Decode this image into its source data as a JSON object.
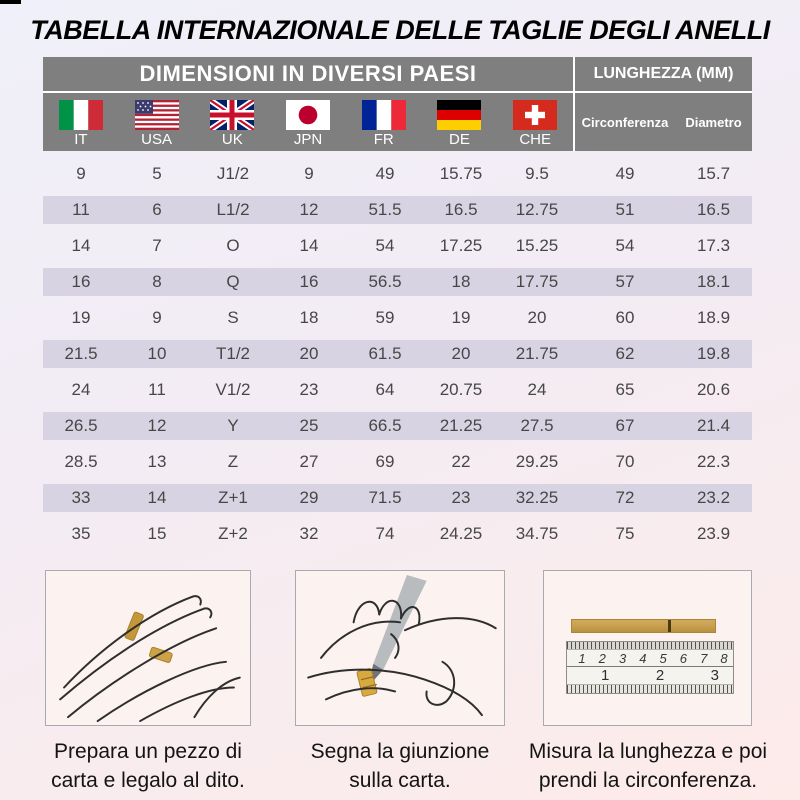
{
  "title": "TABELLA INTERNAZIONALE DELLE TAGLIE DEGLI ANELLI",
  "table": {
    "header_left": "DIMENSIONI IN DIVERSI PAESI",
    "header_right": "LUNGHEZZA (MM)",
    "countries": [
      {
        "code": "IT"
      },
      {
        "code": "USA"
      },
      {
        "code": "UK"
      },
      {
        "code": "JPN"
      },
      {
        "code": "FR"
      },
      {
        "code": "DE"
      },
      {
        "code": "CHE"
      }
    ],
    "measure_columns": [
      "Circonferenza",
      "Diametro"
    ],
    "rows": [
      [
        "9",
        "5",
        "J1/2",
        "9",
        "49",
        "15.75",
        "9.5",
        "49",
        "15.7"
      ],
      [
        "11",
        "6",
        "L1/2",
        "12",
        "51.5",
        "16.5",
        "12.75",
        "51",
        "16.5"
      ],
      [
        "14",
        "7",
        "O",
        "14",
        "54",
        "17.25",
        "15.25",
        "54",
        "17.3"
      ],
      [
        "16",
        "8",
        "Q",
        "16",
        "56.5",
        "18",
        "17.75",
        "57",
        "18.1"
      ],
      [
        "19",
        "9",
        "S",
        "18",
        "59",
        "19",
        "20",
        "60",
        "18.9"
      ],
      [
        "21.5",
        "10",
        "T1/2",
        "20",
        "61.5",
        "20",
        "21.75",
        "62",
        "19.8"
      ],
      [
        "24",
        "11",
        "V1/2",
        "23",
        "64",
        "20.75",
        "24",
        "65",
        "20.6"
      ],
      [
        "26.5",
        "12",
        "Y",
        "25",
        "66.5",
        "21.25",
        "27.5",
        "67",
        "21.4"
      ],
      [
        "28.5",
        "13",
        "Z",
        "27",
        "69",
        "22",
        "29.25",
        "70",
        "22.3"
      ],
      [
        "33",
        "14",
        "Z+1",
        "29",
        "71.5",
        "23",
        "32.25",
        "72",
        "23.2"
      ],
      [
        "35",
        "15",
        "Z+2",
        "32",
        "74",
        "24.25",
        "34.75",
        "75",
        "23.9"
      ]
    ]
  },
  "instructions": [
    {
      "icon": "hand-with-paper-strip",
      "caption_line1": "Prepara un pezzo di",
      "caption_line2": "carta e legalo al dito."
    },
    {
      "icon": "hand-marking-paper",
      "caption_line1": "Segna la giunzione",
      "caption_line2": "sulla carta."
    },
    {
      "icon": "ruler-measuring-strip",
      "caption_line1": "Misura la lunghezza e poi",
      "caption_line2": "prendi la circonferenza."
    }
  ],
  "ruler": {
    "cm_numbers": [
      "1",
      "2",
      "3",
      "4",
      "5",
      "6",
      "7",
      "8"
    ],
    "inch_numbers": [
      "1",
      "2",
      "3"
    ]
  },
  "colors": {
    "header_bg": "#7f7f7f",
    "header_text": "#ffffff",
    "row_stripe": "#d8d3e2",
    "cell_text": "#474747",
    "title_text": "#000000",
    "paper_strip_gold": "#c69f4e",
    "page_gradient_top": "#eff0f9",
    "page_gradient_bottom": "#fdebe9"
  }
}
